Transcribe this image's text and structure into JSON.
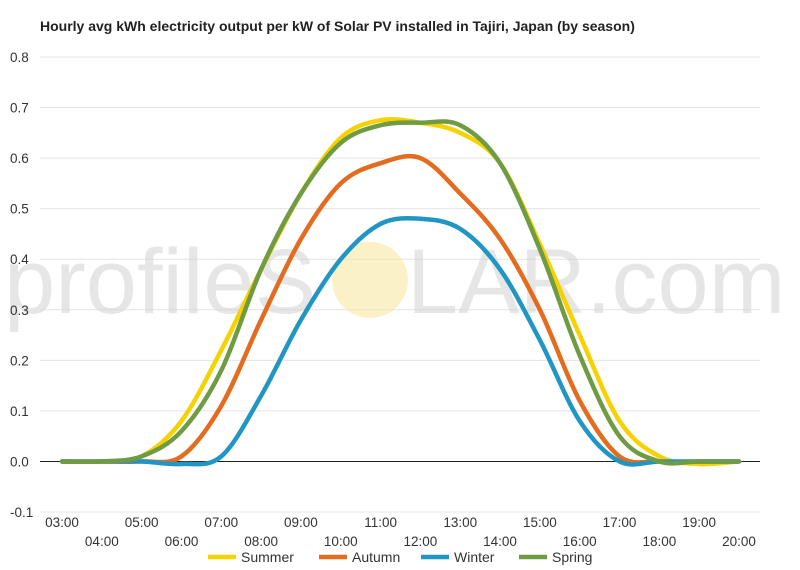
{
  "chart_data": {
    "type": "line",
    "title": "Hourly avg kWh electricity output per kW of Solar PV installed in Tajiri, Japan (by season)",
    "xlabel": "",
    "ylabel": "",
    "x": [
      "03:00",
      "04:00",
      "05:00",
      "06:00",
      "07:00",
      "08:00",
      "09:00",
      "10:00",
      "11:00",
      "12:00",
      "13:00",
      "14:00",
      "15:00",
      "16:00",
      "17:00",
      "18:00",
      "19:00",
      "20:00"
    ],
    "ylim": [
      -0.1,
      0.8
    ],
    "yticks": [
      "-0.1",
      "0.0",
      "0.1",
      "0.2",
      "0.3",
      "0.4",
      "0.5",
      "0.6",
      "0.7",
      "0.8"
    ],
    "grid": true,
    "legend_position": "bottom",
    "series": [
      {
        "name": "Summer",
        "color": "#F6D200",
        "values": [
          0.0,
          0.0,
          0.01,
          0.08,
          0.22,
          0.38,
          0.53,
          0.64,
          0.675,
          0.67,
          0.65,
          0.59,
          0.43,
          0.25,
          0.08,
          0.01,
          -0.005,
          0.0
        ]
      },
      {
        "name": "Autumn",
        "color": "#E36C1F",
        "values": [
          0.0,
          0.0,
          0.0,
          0.01,
          0.11,
          0.28,
          0.44,
          0.55,
          0.59,
          0.6,
          0.53,
          0.44,
          0.3,
          0.12,
          0.01,
          0.0,
          0.0,
          0.0
        ]
      },
      {
        "name": "Winter",
        "color": "#2196C4",
        "values": [
          0.0,
          0.0,
          0.0,
          -0.005,
          0.01,
          0.13,
          0.28,
          0.4,
          0.47,
          0.48,
          0.46,
          0.38,
          0.24,
          0.08,
          0.0,
          0.0,
          0.0,
          0.0
        ]
      },
      {
        "name": "Spring",
        "color": "#6E9B44",
        "values": [
          0.0,
          0.0,
          0.01,
          0.06,
          0.18,
          0.38,
          0.53,
          0.63,
          0.665,
          0.67,
          0.665,
          0.59,
          0.42,
          0.21,
          0.05,
          0.0,
          0.0,
          0.0
        ]
      }
    ]
  },
  "watermark": {
    "left": "profileS",
    "right": "LAR.com",
    "sun_color": "#F9E8A0"
  }
}
